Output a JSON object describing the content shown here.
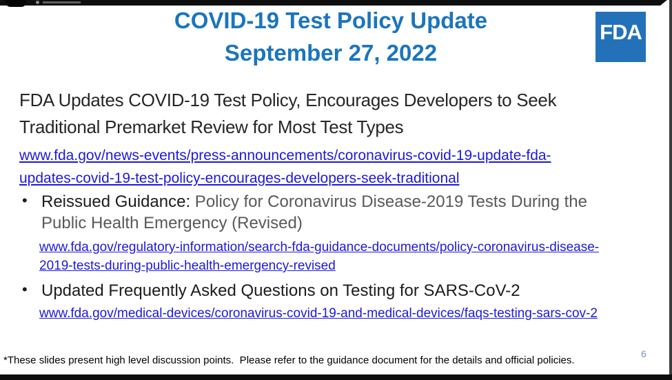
{
  "slide": {
    "title": {
      "line1": "COVID-19 Test Policy Update",
      "line2": "September 27, 2022"
    },
    "logo": {
      "label": "FDA"
    },
    "heading": {
      "line1": "FDA Updates COVID-19 Test Policy, Encourages Developers to Seek",
      "line2": "Traditional Premarket Review for Most Test Types"
    },
    "press_link": {
      "line1": "www.fda.gov/news-events/press-announcements/coronavirus-covid-19-update-fda-",
      "line2": "updates-covid-19-test-policy-encourages-developers-seek-traditional"
    },
    "bullets": {
      "bullet_char": "•",
      "item1": {
        "label": "Reissued Guidance:",
        "rest_line1": " Policy for Coronavirus Disease-2019 Tests During the",
        "rest_line2": "Public Health Emergency (Revised)",
        "link": {
          "line1": "www.fda.gov/regulatory-information/search-fda-guidance-documents/policy-coronavirus-disease-",
          "line2": "2019-tests-during-public-health-emergency-revised"
        }
      },
      "item2": {
        "text": "Updated Frequently Asked Questions on Testing for SARS-CoV-2",
        "link": {
          "line1": "www.fda.gov/medical-devices/coronavirus-covid-19-and-medical-devices/faqs-testing-sars-cov-2"
        }
      }
    },
    "footnote": "*These slides present high level discussion points.  Please refer to the guidance document for the details and official policies.",
    "page_number": "6"
  },
  "colors": {
    "title_blue": "#1b75bc",
    "logo_blue": "#2372b9",
    "link_blue": "#1d18dd",
    "heading_dark": "#262626",
    "bullet_black": "#1c1c1c",
    "bullet_gray": "#595959",
    "page_number_blue": "#7b90c7",
    "bar_black": "#0e0e0e",
    "right_edge_gray": "#3c3c3c"
  }
}
